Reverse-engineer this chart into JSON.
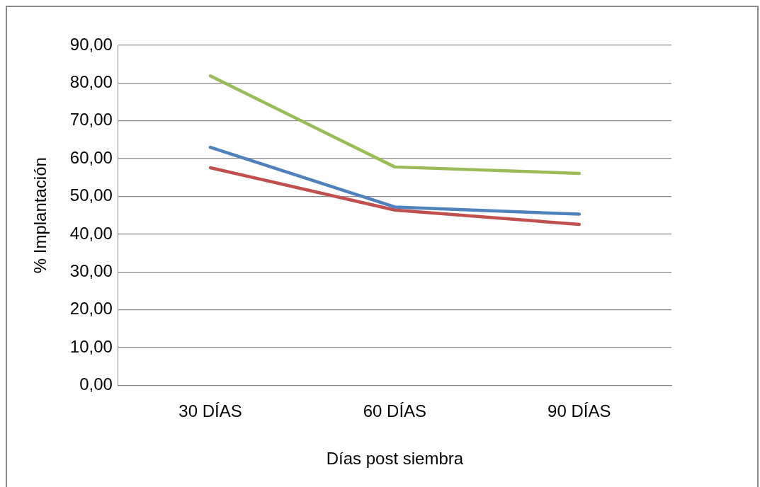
{
  "chart_data": {
    "type": "line",
    "xlabel": "Días post siembra",
    "ylabel": "% Implantación",
    "categories": [
      "30 DÍAS",
      "60 DÍAS",
      "90 DÍAS"
    ],
    "series": [
      {
        "color": "#4f81bd",
        "values": [
          63.0,
          47.2,
          45.3
        ]
      },
      {
        "color": "#c0504d",
        "values": [
          57.6,
          46.4,
          42.6
        ]
      },
      {
        "color": "#9bbb59",
        "values": [
          81.9,
          57.8,
          56.1
        ]
      }
    ],
    "ylim": [
      0,
      90
    ],
    "yticks": [
      {
        "value": 0,
        "label": "0,00"
      },
      {
        "value": 10,
        "label": "10,00"
      },
      {
        "value": 20,
        "label": "20,00"
      },
      {
        "value": 30,
        "label": "30,00"
      },
      {
        "value": 40,
        "label": "40,00"
      },
      {
        "value": 50,
        "label": "50,00"
      },
      {
        "value": 60,
        "label": "60,00"
      },
      {
        "value": 70,
        "label": "70,00"
      },
      {
        "value": 80,
        "label": "80,00"
      },
      {
        "value": 90,
        "label": "90,00"
      }
    ],
    "grid": "y",
    "legend": false,
    "marker": "none",
    "line_style": "solid"
  }
}
